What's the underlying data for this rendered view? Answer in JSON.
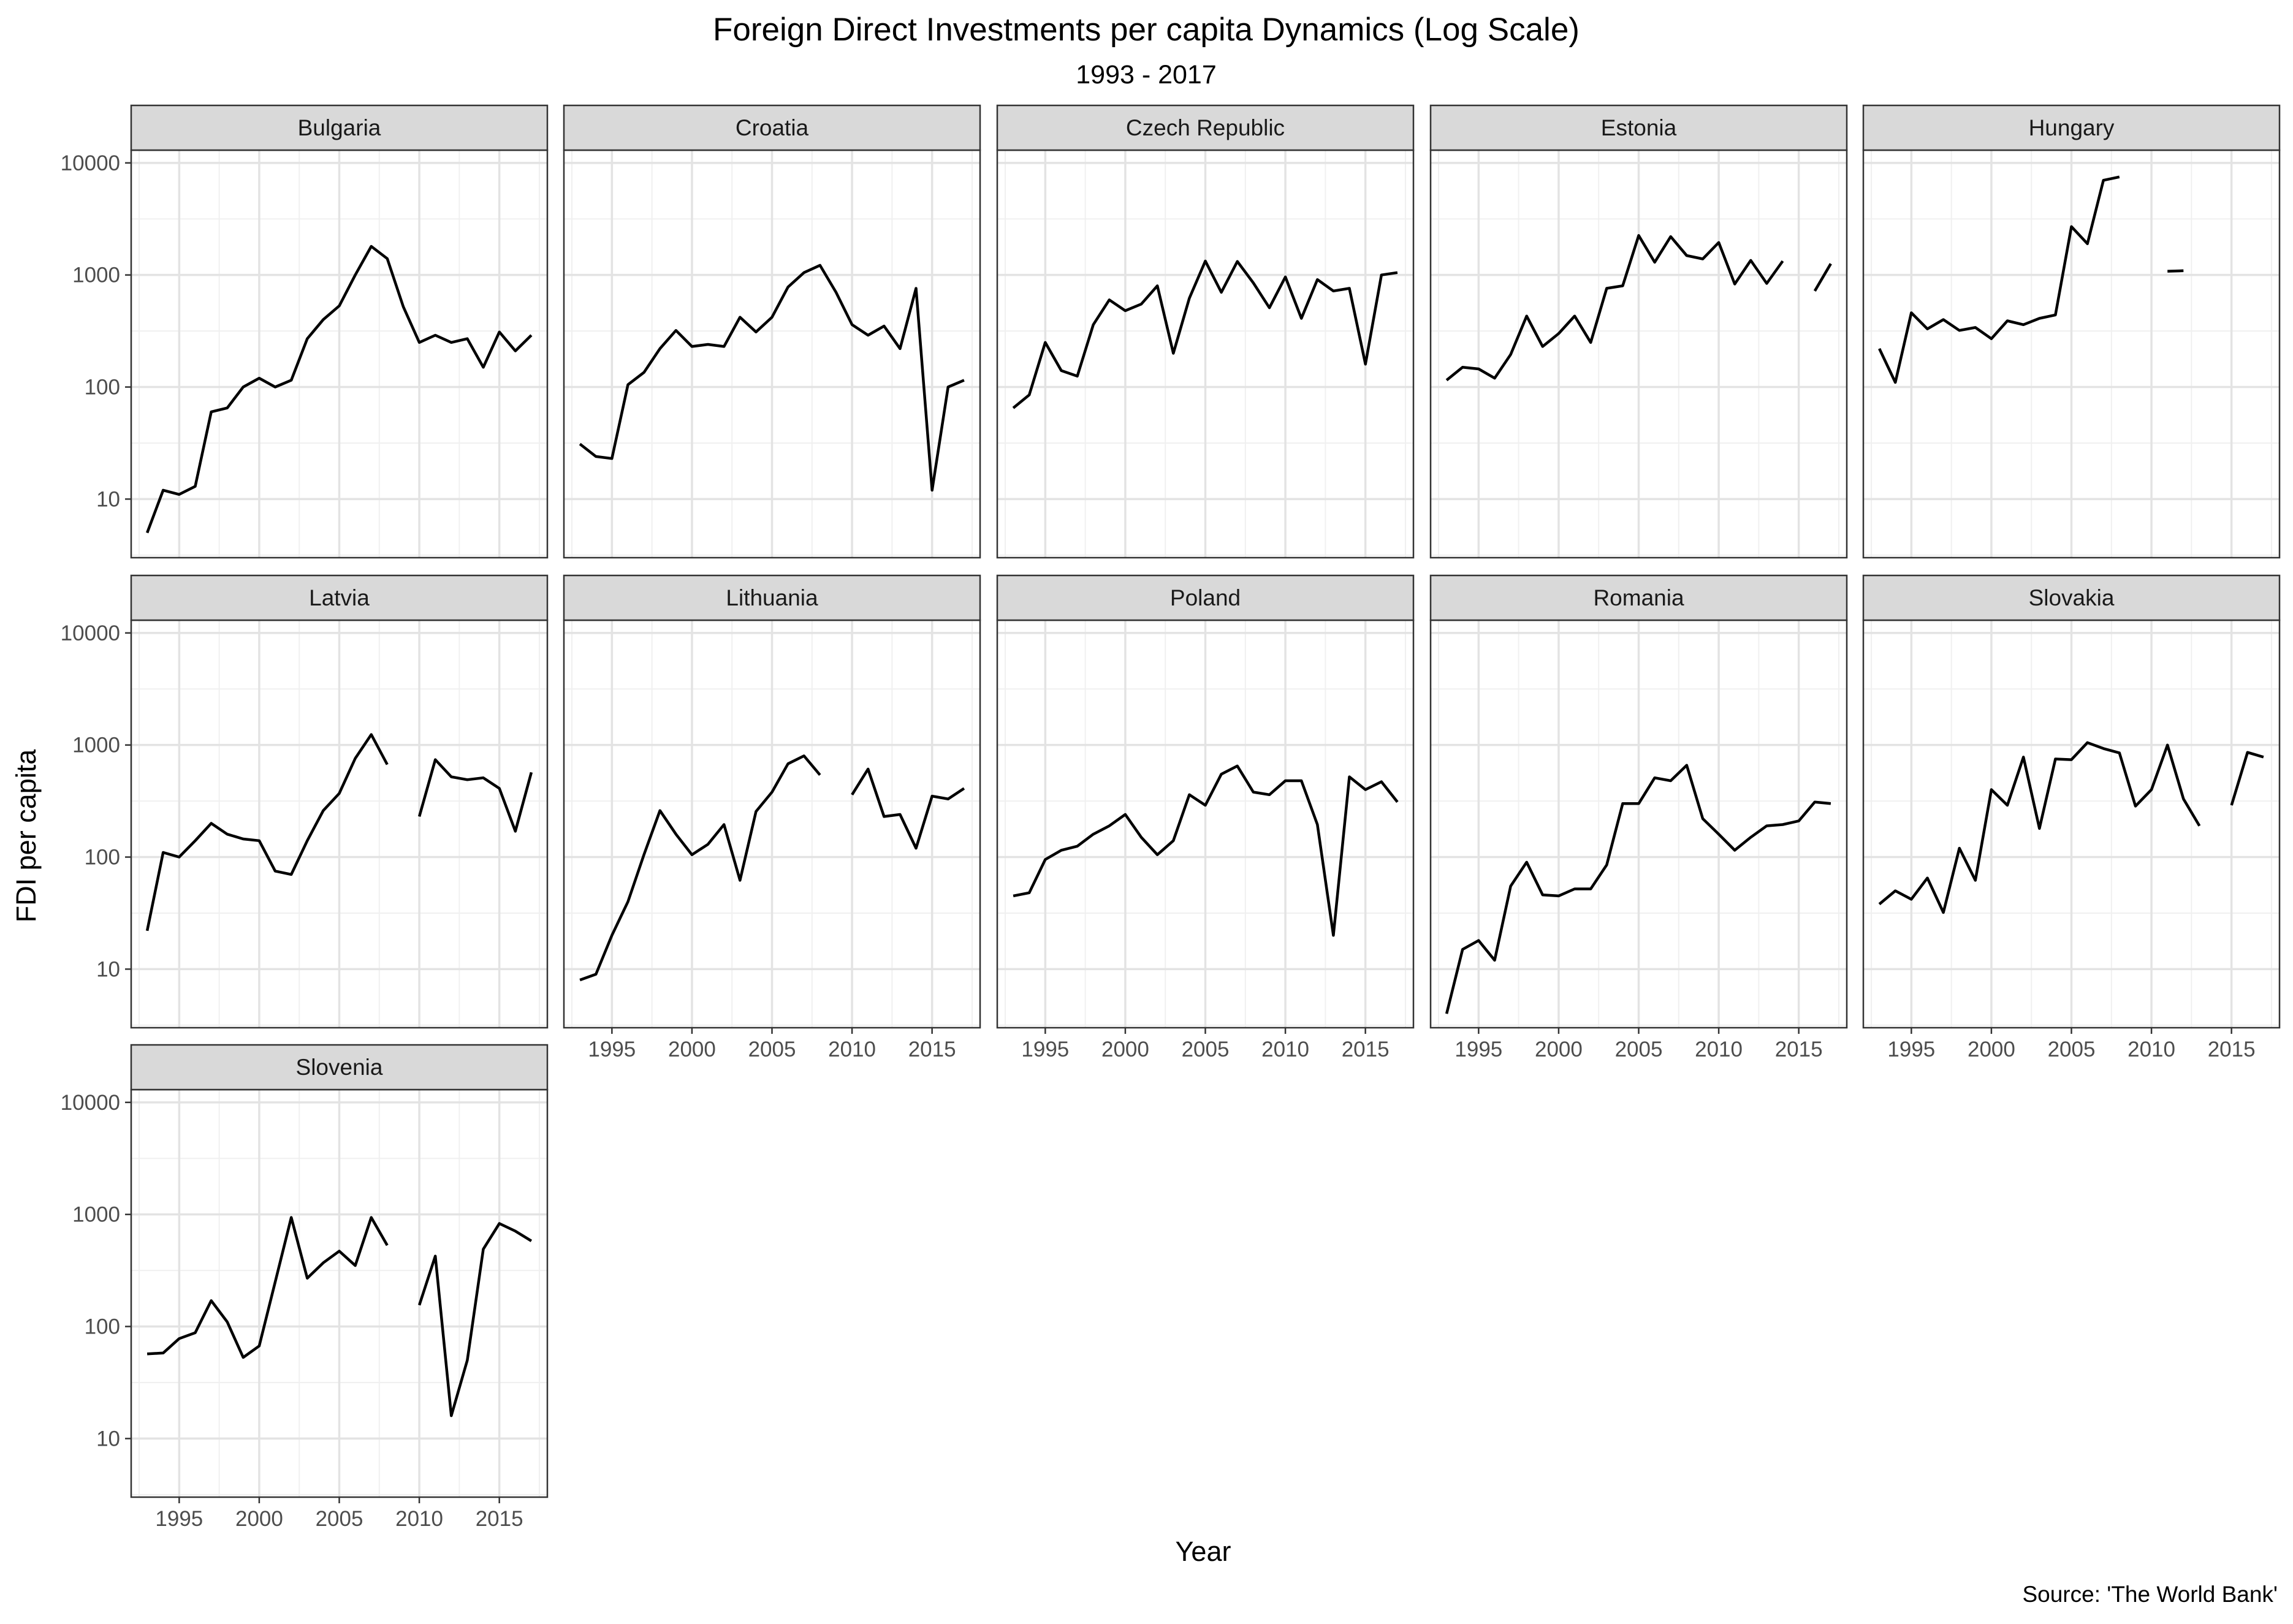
{
  "chart_data": {
    "type": "line",
    "title": "Foreign Direct Investments per capita Dynamics (Log Scale)",
    "subtitle": "1993 - 2017",
    "xlabel": "Year",
    "ylabel": "FDI per capita",
    "caption": "Source: 'The World Bank'",
    "y_scale": "log10",
    "ylim": [
      3,
      13000
    ],
    "xlim": [
      1992,
      2018
    ],
    "y_ticks": [
      10,
      100,
      1000,
      10000
    ],
    "y_tick_labels": [
      "10",
      "100",
      "1000",
      "10000"
    ],
    "x_ticks": [
      1995,
      2000,
      2005,
      2010,
      2015
    ],
    "x_tick_labels": [
      "1995",
      "2000",
      "2005",
      "2010",
      "2015"
    ],
    "grid": true,
    "legend": "none",
    "facet_columns": 5,
    "x": [
      1993,
      1994,
      1995,
      1996,
      1997,
      1998,
      1999,
      2000,
      2001,
      2002,
      2003,
      2004,
      2005,
      2006,
      2007,
      2008,
      2009,
      2010,
      2011,
      2012,
      2013,
      2014,
      2015,
      2016,
      2017
    ],
    "series": [
      {
        "name": "Bulgaria",
        "values": [
          5,
          12,
          11,
          13,
          60,
          65,
          100,
          120,
          100,
          115,
          270,
          400,
          530,
          1000,
          1800,
          1400,
          520,
          250,
          290,
          250,
          270,
          150,
          310,
          210,
          290
        ]
      },
      {
        "name": "Croatia",
        "values": [
          31,
          24,
          23,
          105,
          135,
          220,
          320,
          230,
          240,
          230,
          420,
          310,
          420,
          780,
          1050,
          1220,
          700,
          360,
          290,
          350,
          220,
          760,
          12,
          100,
          115
        ]
      },
      {
        "name": "Czech Republic",
        "values": [
          65,
          85,
          250,
          140,
          125,
          360,
          600,
          480,
          550,
          800,
          200,
          620,
          1330,
          700,
          1320,
          850,
          510,
          960,
          410,
          910,
          720,
          760,
          160,
          1000,
          1050
        ]
      },
      {
        "name": "Estonia",
        "values": [
          115,
          150,
          145,
          120,
          195,
          430,
          230,
          300,
          430,
          250,
          760,
          800,
          2250,
          1300,
          2200,
          1490,
          1390,
          1950,
          830,
          1350,
          840,
          1330,
          null,
          720,
          1260
        ]
      },
      {
        "name": "Hungary",
        "values": [
          220,
          110,
          460,
          330,
          400,
          320,
          340,
          270,
          390,
          360,
          410,
          440,
          2700,
          1900,
          7000,
          7500,
          null,
          null,
          1080,
          1090,
          null,
          null,
          null,
          null,
          null
        ]
      },
      {
        "name": "Latvia",
        "values": [
          22,
          110,
          100,
          140,
          200,
          160,
          145,
          140,
          75,
          70,
          140,
          260,
          370,
          760,
          1240,
          670,
          null,
          230,
          740,
          520,
          490,
          510,
          410,
          170,
          570
        ]
      },
      {
        "name": "Lithuania",
        "values": [
          8,
          9,
          20,
          40,
          105,
          260,
          160,
          105,
          130,
          195,
          62,
          255,
          380,
          680,
          800,
          540,
          null,
          360,
          610,
          230,
          240,
          120,
          350,
          330,
          410
        ]
      },
      {
        "name": "Poland",
        "values": [
          45,
          48,
          95,
          115,
          125,
          160,
          190,
          240,
          150,
          105,
          140,
          360,
          290,
          550,
          650,
          380,
          360,
          480,
          480,
          195,
          20,
          520,
          400,
          470,
          310
        ]
      },
      {
        "name": "Romania",
        "values": [
          4,
          15,
          18,
          12,
          55,
          90,
          46,
          45,
          52,
          52,
          85,
          300,
          300,
          510,
          480,
          660,
          220,
          160,
          115,
          150,
          190,
          195,
          210,
          310,
          300
        ]
      },
      {
        "name": "Slovakia",
        "values": [
          38,
          50,
          42,
          65,
          32,
          120,
          62,
          400,
          290,
          780,
          180,
          750,
          740,
          1050,
          930,
          850,
          285,
          400,
          1000,
          330,
          190,
          null,
          290,
          860,
          780
        ]
      },
      {
        "name": "Slovenia",
        "values": [
          57,
          58,
          78,
          88,
          170,
          110,
          53,
          67,
          250,
          940,
          270,
          370,
          470,
          350,
          940,
          530,
          null,
          155,
          425,
          16,
          50,
          490,
          830,
          710,
          580
        ]
      }
    ]
  }
}
